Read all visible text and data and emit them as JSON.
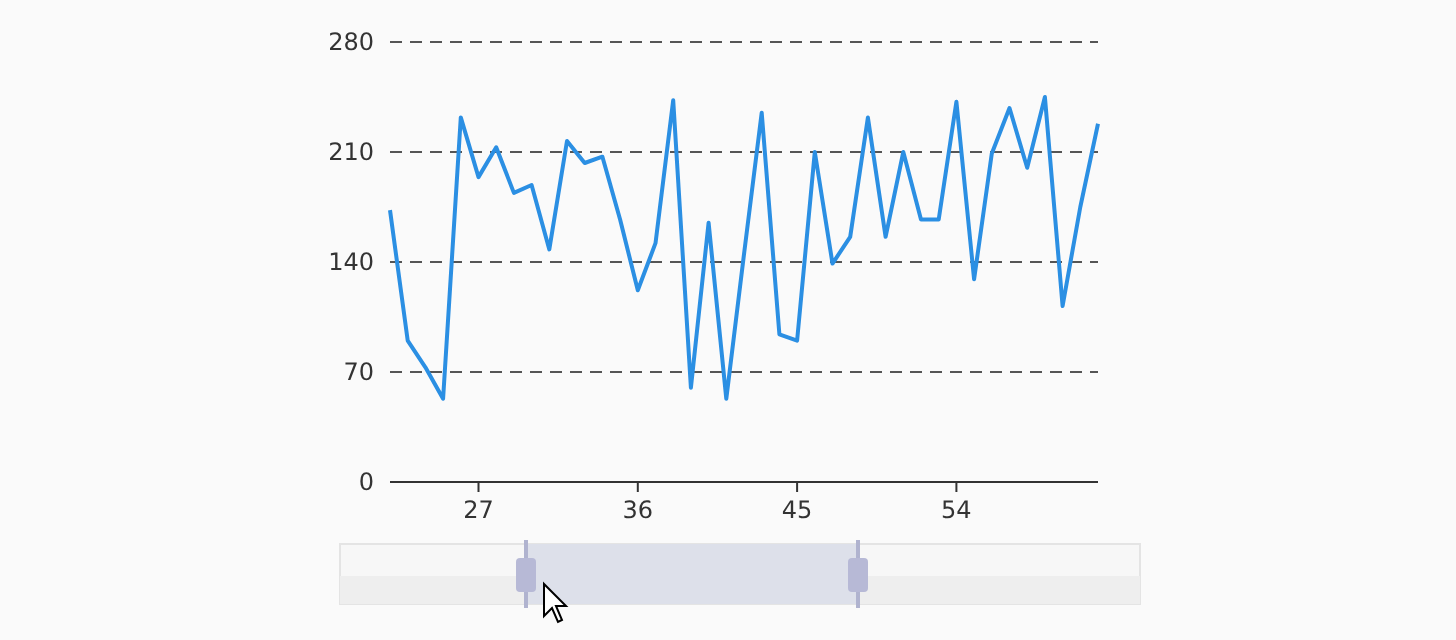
{
  "chart_data": {
    "type": "line",
    "x": [
      22,
      23,
      24,
      25,
      26,
      27,
      28,
      29,
      30,
      31,
      32,
      33,
      34,
      35,
      36,
      37,
      38,
      39,
      40,
      41,
      42,
      43,
      44,
      45,
      46,
      47,
      48,
      49,
      50,
      51,
      52,
      53,
      54,
      55,
      56,
      57,
      58,
      59,
      60,
      61,
      62
    ],
    "series": [
      {
        "color": "#2b8fe3",
        "values": [
          173,
          90,
          73,
          53,
          232,
          194,
          213,
          184,
          189,
          148,
          217,
          203,
          207,
          167,
          122,
          152,
          243,
          60,
          165,
          53,
          145,
          235,
          94,
          90,
          210,
          139,
          156,
          232,
          156,
          210,
          167,
          167,
          242,
          129,
          209,
          238,
          200,
          245,
          112,
          175,
          228
        ]
      }
    ],
    "xlim": [
      22,
      62
    ],
    "xticks": [
      27,
      36,
      45,
      54
    ],
    "ylim": [
      0,
      280
    ],
    "yticks": [
      0,
      70,
      140,
      210,
      280
    ],
    "grid": "y",
    "marker": "none",
    "line_style": "solid"
  }
}
